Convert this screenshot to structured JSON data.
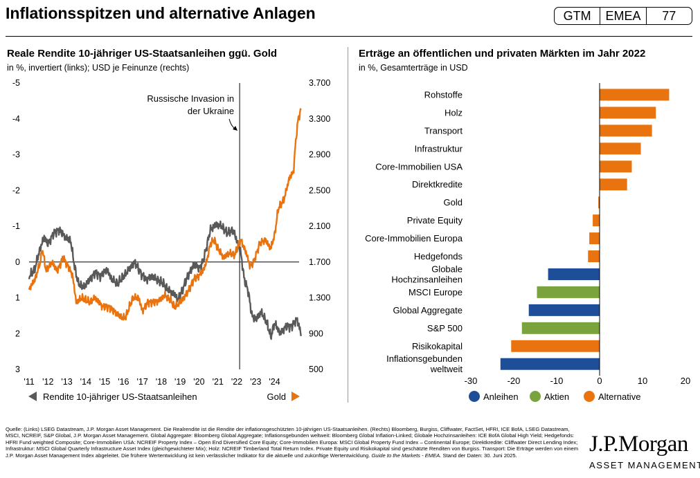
{
  "header": {
    "title": "Inflationsspitzen und alternative Anlagen",
    "badge": [
      "GTM",
      "EMEA",
      "77"
    ]
  },
  "chart_data": [
    {
      "type": "line",
      "title": "Reale Rendite 10-jähriger US-Staatsanleihen ggü. Gold",
      "subtitle": "in %, invertiert (links); USD je Feinunze (rechts)",
      "x_ticks": [
        "'11",
        "'12",
        "'13",
        "'14",
        "'15",
        "'16",
        "'17",
        "'18",
        "'19",
        "'20",
        "'21",
        "'22",
        "'23",
        "'24"
      ],
      "x_range": [
        2011,
        2025.3
      ],
      "y_left": {
        "inverted": true,
        "range": [
          3,
          -5
        ],
        "ticks": [
          "-5",
          "-4",
          "-3",
          "-2",
          "-1",
          "0",
          "1",
          "2",
          "3"
        ]
      },
      "y_right": {
        "range": [
          500,
          3700
        ],
        "ticks": [
          "3.700",
          "3.300",
          "2.900",
          "2.500",
          "2.100",
          "1.700",
          "1.300",
          "900",
          "500"
        ]
      },
      "annotation": {
        "text": [
          "Russische Invasion in",
          "der Ukraine"
        ],
        "x": 2022.15
      },
      "legend": {
        "left": "Rendite 10-jähriger US-Staatsanleihen",
        "right": "Gold"
      },
      "colors": {
        "real_yield": "#595959",
        "gold": "#e8730f"
      },
      "series": [
        {
          "name": "Rendite 10-jähriger US-Staatsanleihen",
          "axis": "left",
          "x": [
            2011.0,
            2011.3,
            2011.6,
            2011.8,
            2012.0,
            2012.3,
            2012.6,
            2012.9,
            2013.2,
            2013.4,
            2013.6,
            2013.9,
            2014.2,
            2014.5,
            2014.8,
            2015.1,
            2015.4,
            2015.7,
            2016.0,
            2016.3,
            2016.6,
            2016.9,
            2017.2,
            2017.5,
            2017.8,
            2018.1,
            2018.4,
            2018.7,
            2018.9,
            2019.1,
            2019.4,
            2019.7,
            2019.9,
            2020.0,
            2020.2,
            2020.35,
            2020.6,
            2020.9,
            2021.2,
            2021.5,
            2021.8,
            2022.0,
            2022.2,
            2022.4,
            2022.6,
            2022.8,
            2023.0,
            2023.3,
            2023.6,
            2023.8,
            2024.0,
            2024.3,
            2024.6,
            2024.9,
            2025.2,
            2025.4
          ],
          "y": [
            0.4,
            0.2,
            -0.4,
            -0.7,
            -0.5,
            -0.8,
            -0.9,
            -0.7,
            -0.6,
            0.1,
            0.6,
            0.7,
            0.5,
            0.3,
            0.4,
            0.2,
            0.5,
            0.6,
            0.4,
            0.2,
            0.0,
            0.3,
            0.5,
            0.4,
            0.5,
            0.6,
            0.8,
            0.9,
            1.05,
            0.8,
            0.4,
            0.1,
            0.1,
            0.2,
            0.0,
            -0.3,
            -0.9,
            -1.05,
            -1.0,
            -0.8,
            -0.9,
            -0.6,
            -0.3,
            0.5,
            0.8,
            1.5,
            1.6,
            1.4,
            1.7,
            2.1,
            1.7,
            2.0,
            1.8,
            1.8,
            1.6,
            2.0
          ]
        },
        {
          "name": "Gold",
          "axis": "right",
          "x": [
            2011.0,
            2011.3,
            2011.6,
            2011.7,
            2011.9,
            2012.2,
            2012.5,
            2012.8,
            2013.0,
            2013.3,
            2013.5,
            2013.8,
            2014.2,
            2014.5,
            2014.9,
            2015.2,
            2015.5,
            2015.9,
            2016.1,
            2016.5,
            2016.8,
            2017.0,
            2017.3,
            2017.6,
            2017.9,
            2018.2,
            2018.5,
            2018.7,
            2018.9,
            2019.2,
            2019.5,
            2019.7,
            2020.0,
            2020.2,
            2020.4,
            2020.6,
            2020.8,
            2021.0,
            2021.3,
            2021.6,
            2021.9,
            2022.2,
            2022.5,
            2022.7,
            2022.9,
            2023.2,
            2023.5,
            2023.8,
            2024.0,
            2024.2,
            2024.5,
            2024.8,
            2025.0,
            2025.1,
            2025.25,
            2025.4
          ],
          "y": [
            1400,
            1500,
            1700,
            1850,
            1600,
            1700,
            1600,
            1750,
            1680,
            1550,
            1250,
            1300,
            1250,
            1300,
            1200,
            1200,
            1150,
            1080,
            1080,
            1300,
            1300,
            1150,
            1250,
            1250,
            1270,
            1330,
            1270,
            1200,
            1230,
            1300,
            1400,
            1500,
            1550,
            1600,
            1700,
            1900,
            1950,
            1850,
            1750,
            1800,
            1780,
            1950,
            1800,
            1650,
            1700,
            1900,
            1950,
            1850,
            2000,
            2300,
            2400,
            2650,
            2700,
            3000,
            3300,
            3400
          ]
        }
      ]
    },
    {
      "type": "bar",
      "orientation": "horizontal",
      "title": "Erträge an öffentlichen und privaten Märkten im Jahr 2022",
      "subtitle": "in %, Gesamterträge in USD",
      "xlim": [
        -30,
        20
      ],
      "x_ticks": [
        "-30",
        "-20",
        "-10",
        "0",
        "10",
        "20"
      ],
      "categories": [
        "Rohstoffe",
        "Holz",
        "Transport",
        "Infrastruktur",
        "Core-Immobilien USA",
        "Direktkredite",
        "Gold",
        "Private Equity",
        "Core-Immobilien Europa",
        "Hedgefonds",
        "Globale Hochzinsanleihen",
        "MSCI Europe",
        "Global Aggregate",
        "S&P 500",
        "Risikokapital",
        "Inflationsgebunden weltweit"
      ],
      "category_lines": [
        [
          "Rohstoffe"
        ],
        [
          "Holz"
        ],
        [
          "Transport"
        ],
        [
          "Infrastruktur"
        ],
        [
          "Core-Immobilien USA"
        ],
        [
          "Direktkredite"
        ],
        [
          "Gold"
        ],
        [
          "Private Equity"
        ],
        [
          "Core-Immobilien Europa"
        ],
        [
          "Hedgefonds"
        ],
        [
          "Globale",
          "Hochzinsanleihen"
        ],
        [
          "MSCI Europe"
        ],
        [
          "Global Aggregate"
        ],
        [
          "S&P 500"
        ],
        [
          "Risikokapital"
        ],
        [
          "Inflationsgebunden",
          "weltweit"
        ]
      ],
      "values": [
        16.2,
        13.1,
        12.2,
        9.6,
        7.5,
        6.4,
        -0.3,
        -1.6,
        -2.4,
        -2.7,
        -12.0,
        -14.6,
        -16.5,
        -18.1,
        -20.6,
        -23.1
      ],
      "groups": [
        "Alternative",
        "Alternative",
        "Alternative",
        "Alternative",
        "Alternative",
        "Alternative",
        "Alternative",
        "Alternative",
        "Alternative",
        "Alternative",
        "Anleihen",
        "Aktien",
        "Anleihen",
        "Aktien",
        "Alternative",
        "Anleihen"
      ],
      "legend": [
        {
          "name": "Anleihen",
          "color": "#1f4e99"
        },
        {
          "name": "Aktien",
          "color": "#7aa33e"
        },
        {
          "name": "Alternative",
          "color": "#e8730f"
        }
      ]
    }
  ],
  "footnote": {
    "text": "Quelle: (Links) LSEG Datastream, J.P. Morgan Asset Management. Die Realrendite ist die Rendite der inflationsgeschützten 10-jährigen US-Staatsanleihen. (Rechts) Bloomberg, Burgiss, Cliffwater, FactSet, HFRI, ICE BofA, LSEG Datastream, MSCI, NCREIF, S&P Global, J.P. Morgan Asset Management. Global Aggregate: Bloomberg Global Aggregate; Inflationsgebunden weltweit: Bloomberg Global Inflation-Linked; Globale Hochzinsanleihen: ICE BofA Global High Yield; Hedgefonds: HFRI Fund weighted Composite; Core-Immobilien USA: NCREIF Property Index – Open End Diversified Core Equity; Core-Immobilien Europa: MSCI Global Property Fund Index – Continental Europe; Direktkredite: Cliffwater Direct Lending Index; Infrastruktur: MSCI Global Quarterly Infrastructure Asset Index (gleichgewichteter Mix); Holz: NCREIF Timberland Total Return Index. Private Equity und Risikokapital sind geschätzte Renditen von Burgiss. Transport: Die Erträge werden von einem J.P. Morgan Asset Management Index abgeleitet. Die frühere Wertentwicklung ist kein verlässlicher Indikator für die aktuelle und zukünftige Wertentwicklung.",
    "italic": "Guide to the Markets - EMEA.",
    "date": "Stand der Daten: 30. Juni 2025."
  },
  "logo": {
    "main": "J.P.Morgan",
    "sub": "ASSET MANAGEMENT"
  }
}
